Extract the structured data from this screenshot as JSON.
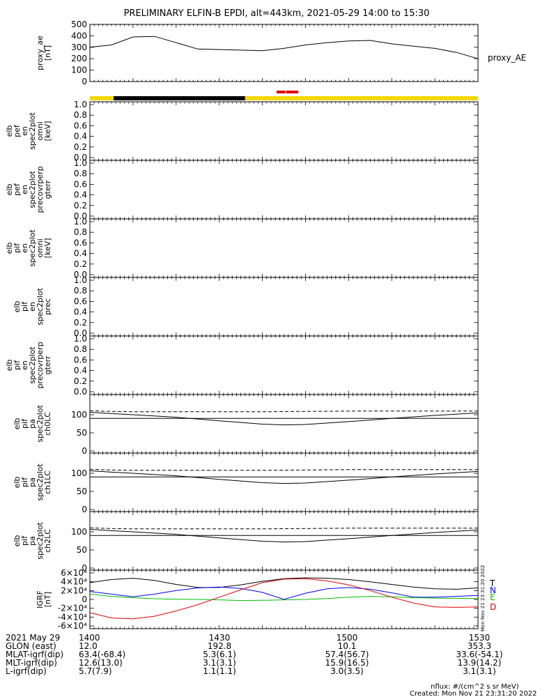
{
  "title": "PRELIMINARY ELFIN-B EPDI, alt=443km, 2021-05-29 14:00 to 15:30",
  "chart_data": [
    {
      "type": "line",
      "panel": "proxy_ae",
      "ylabel_lines": [
        "proxy_ae",
        "[nT]"
      ],
      "ylim": [
        0,
        500
      ],
      "yticks": [
        "0",
        "100",
        "200",
        "300",
        "400",
        "500"
      ],
      "legend": "proxy_AE",
      "series": [
        {
          "name": "proxy_AE",
          "x_minutes": [
            0,
            5,
            10,
            15,
            20,
            25,
            30,
            35,
            40,
            45,
            50,
            55,
            60,
            65,
            70,
            75,
            80,
            85,
            90
          ],
          "values": [
            300,
            320,
            390,
            395,
            340,
            285,
            280,
            275,
            270,
            290,
            320,
            340,
            355,
            360,
            330,
            310,
            290,
            255,
            200
          ]
        }
      ]
    },
    {
      "type": "bar",
      "panel": "data-quality-bar",
      "x_minutes_range": [
        0,
        90
      ],
      "segments": [
        {
          "x0": 0,
          "x1": 5.5,
          "color": "#f5d800"
        },
        {
          "x0": 5.5,
          "x1": 36,
          "color": "#000000"
        },
        {
          "x0": 36,
          "x1": 90,
          "color": "#f5d800"
        }
      ],
      "markers": [
        {
          "x0": 43.3,
          "x1": 45.5,
          "color": "#e00000"
        },
        {
          "x0": 45.5,
          "x1": 48.5,
          "color": "#e00000"
        }
      ]
    },
    {
      "type": "heatmap",
      "panel": "elb_pef_pmni",
      "ylabel_lines": [
        "elb",
        "pef",
        "en",
        "spec2plot",
        "omni",
        "[keV]"
      ],
      "ylim": [
        0,
        1
      ],
      "yticks": [
        "0.0",
        "0.2",
        "0.4",
        "0.6",
        "0.8",
        "1.0"
      ]
    },
    {
      "type": "heatmap",
      "panel": "elb_pef_precovrperp",
      "ylabel_lines": [
        "elb",
        "pef",
        "en",
        "spec2plot",
        "precovrperp",
        "gterr"
      ],
      "ylim": [
        0,
        1
      ],
      "yticks": [
        "0.0",
        "0.2",
        "0.4",
        "0.6",
        "0.8",
        "1.0"
      ]
    },
    {
      "type": "heatmap",
      "panel": "elb_pif_omni",
      "ylabel_lines": [
        "elb",
        "pif",
        "en",
        "spec2plot",
        "omni",
        "[keV]"
      ],
      "ylim": [
        0,
        1
      ],
      "yticks": [
        "0.0",
        "0.2",
        "0.4",
        "0.6",
        "0.8",
        "1.0"
      ]
    },
    {
      "type": "heatmap",
      "panel": "elb_pif_prec",
      "ylabel_lines": [
        "elb",
        "pif",
        "en",
        "spec2plot",
        "prec"
      ],
      "ylim": [
        0,
        1
      ],
      "yticks": [
        "0.0",
        "0.2",
        "0.4",
        "0.6",
        "0.8",
        "1.0"
      ]
    },
    {
      "type": "heatmap",
      "panel": "elb_pif_precovrperp",
      "ylabel_lines": [
        "elb",
        "pif",
        "en",
        "spec2plot",
        "precovrperp",
        "gterr"
      ],
      "ylim": [
        0,
        1
      ],
      "yticks": [
        "0.0",
        "0.2",
        "0.4",
        "0.6",
        "0.8",
        "1.0"
      ]
    },
    {
      "type": "line",
      "panel": "elb_pif_pa_ch0LC",
      "ylabel_lines": [
        "elb",
        "pif",
        "pa",
        "spec2plot",
        "ch0LC"
      ],
      "ylim": [
        0,
        150
      ],
      "yticks": [
        "0",
        "50",
        "100"
      ],
      "series": [
        {
          "name": "",
          "style": "dashed",
          "x_minutes": [
            0,
            5,
            10,
            20,
            30,
            40,
            50,
            60,
            70,
            80,
            90
          ],
          "values": [
            111,
            109,
            108,
            108,
            108,
            108,
            109,
            110,
            110,
            110,
            110
          ]
        },
        {
          "name": "",
          "style": "solid",
          "x_minutes": [
            0,
            5,
            10,
            20,
            30,
            40,
            45,
            50,
            60,
            70,
            80,
            90
          ],
          "values": [
            107,
            103,
            100,
            93,
            83,
            74,
            72,
            73,
            81,
            90,
            98,
            105
          ]
        },
        {
          "name": "",
          "style": "solid",
          "x_minutes": [
            0,
            90
          ],
          "values": [
            90,
            90
          ]
        }
      ]
    },
    {
      "type": "line",
      "panel": "elb_pif_pa_ch1LC",
      "ylabel_lines": [
        "elb",
        "pif",
        "pa",
        "spec2plot",
        "ch1LC"
      ],
      "ylim": [
        0,
        150
      ],
      "yticks": [
        "0",
        "50",
        "100"
      ],
      "series": [
        {
          "name": "",
          "style": "dashed",
          "x_minutes": [
            0,
            5,
            10,
            20,
            30,
            40,
            50,
            60,
            70,
            80,
            90
          ],
          "values": [
            111,
            109,
            108,
            108,
            108,
            108,
            109,
            110,
            110,
            110,
            110
          ]
        },
        {
          "name": "",
          "style": "solid",
          "x_minutes": [
            0,
            5,
            10,
            20,
            30,
            40,
            45,
            50,
            60,
            70,
            80,
            90
          ],
          "values": [
            107,
            103,
            100,
            93,
            83,
            74,
            72,
            73,
            81,
            90,
            98,
            105
          ]
        },
        {
          "name": "",
          "style": "solid",
          "x_minutes": [
            0,
            90
          ],
          "values": [
            90,
            90
          ]
        }
      ]
    },
    {
      "type": "line",
      "panel": "elb_pif_pa_ch2LC",
      "ylabel_lines": [
        "elb",
        "pif",
        "pa",
        "spec2plot",
        "ch2LC"
      ],
      "ylim": [
        0,
        150
      ],
      "yticks": [
        "0",
        "50",
        "100"
      ],
      "series": [
        {
          "name": "",
          "style": "dashed",
          "x_minutes": [
            0,
            5,
            10,
            20,
            30,
            40,
            50,
            60,
            70,
            80,
            90
          ],
          "values": [
            111,
            109,
            108,
            108,
            108,
            108,
            109,
            110,
            110,
            110,
            110
          ]
        },
        {
          "name": "",
          "style": "solid",
          "x_minutes": [
            0,
            5,
            10,
            20,
            30,
            40,
            45,
            50,
            60,
            70,
            80,
            90
          ],
          "values": [
            107,
            103,
            100,
            93,
            83,
            74,
            72,
            73,
            81,
            90,
            98,
            105
          ]
        },
        {
          "name": "",
          "style": "solid",
          "x_minutes": [
            0,
            90
          ],
          "values": [
            90,
            90
          ]
        }
      ]
    },
    {
      "type": "line",
      "panel": "IGRF",
      "ylabel_lines": [
        "IGRF",
        "[nT]"
      ],
      "ylim": [
        -60000,
        60000
      ],
      "yticks": [
        "-6×10⁴",
        "-4×10⁴",
        "-2×10⁴",
        "0",
        "2×10⁴",
        "4×10⁴",
        "6×10⁴"
      ],
      "legend": [
        "T",
        "N",
        "E",
        "D"
      ],
      "series": [
        {
          "name": "T",
          "color": "#000000",
          "x_minutes": [
            0,
            5,
            10,
            15,
            20,
            25,
            30,
            35,
            40,
            45,
            50,
            55,
            60,
            65,
            70,
            75,
            80,
            85,
            90
          ],
          "values": [
            38000,
            45000,
            48000,
            43000,
            34000,
            27000,
            27000,
            33000,
            41000,
            47000,
            49000,
            48000,
            45000,
            40000,
            34000,
            28000,
            24000,
            23000,
            26000
          ]
        },
        {
          "name": "N",
          "color": "#0000ff",
          "x_minutes": [
            0,
            5,
            10,
            15,
            20,
            25,
            30,
            35,
            40,
            45,
            50,
            55,
            60,
            65,
            70,
            75,
            80,
            85,
            90
          ],
          "values": [
            18000,
            12000,
            6000,
            12000,
            20000,
            26000,
            28000,
            25000,
            16000,
            0,
            14000,
            24000,
            27000,
            23000,
            15000,
            5000,
            5000,
            7000,
            9000
          ]
        },
        {
          "name": "E",
          "color": "#00c000",
          "x_minutes": [
            0,
            5,
            10,
            15,
            20,
            25,
            30,
            35,
            40,
            45,
            50,
            55,
            60,
            65,
            70,
            75,
            80,
            85,
            90
          ],
          "values": [
            12000,
            7000,
            4000,
            1500,
            500,
            0,
            -1000,
            -2500,
            -2000,
            -1000,
            0,
            2000,
            5000,
            7000,
            6000,
            4000,
            3000,
            2500,
            2000
          ]
        },
        {
          "name": "D",
          "color": "#e00000",
          "x_minutes": [
            0,
            5,
            10,
            15,
            20,
            25,
            30,
            35,
            40,
            45,
            50,
            55,
            60,
            65,
            70,
            75,
            80,
            85,
            90
          ],
          "values": [
            -30000,
            -42000,
            -44000,
            -38000,
            -26000,
            -12000,
            5000,
            22000,
            38000,
            46000,
            47000,
            42000,
            33000,
            20000,
            5000,
            -8000,
            -17000,
            -18000,
            -17000
          ]
        }
      ]
    }
  ],
  "xaxis": {
    "ticks": [
      {
        "minute": 0,
        "label": "1400"
      },
      {
        "minute": 30,
        "label": "1430"
      },
      {
        "minute": 60,
        "label": "1500"
      },
      {
        "minute": 90,
        "label": "1530"
      }
    ]
  },
  "ephemeris": {
    "rows": [
      {
        "label": "2021 May 29",
        "values": [
          "1400",
          "1430",
          "1500",
          "1530"
        ]
      },
      {
        "label": "GLON (east)",
        "values": [
          "12.0",
          "192.8",
          "10.1",
          "353.3"
        ]
      },
      {
        "label": "MLAT-igrf(dip)",
        "values": [
          "63.4(-68.4)",
          "5.3(6.1)",
          "57.4(56.7)",
          "33.6(-54.1)"
        ]
      },
      {
        "label": "MLT-igrf(dip)",
        "values": [
          "12.6(13.0)",
          "3.1(3.1)",
          "15.9(16.5)",
          "13.9(14.2)"
        ]
      },
      {
        "label": "L-igrf(dip)",
        "values": [
          "5.7(7.9)",
          "1.1(1.1)",
          "3.0(3.5)",
          "3.1(3.1)"
        ]
      }
    ]
  },
  "side_stamp": "Mon Nov 21 23:31:20 2022",
  "footer": {
    "nflux": "nflux: #/(cm^2 s sr MeV)",
    "created": "Created: Mon Nov 21 23:31:20 2022"
  }
}
